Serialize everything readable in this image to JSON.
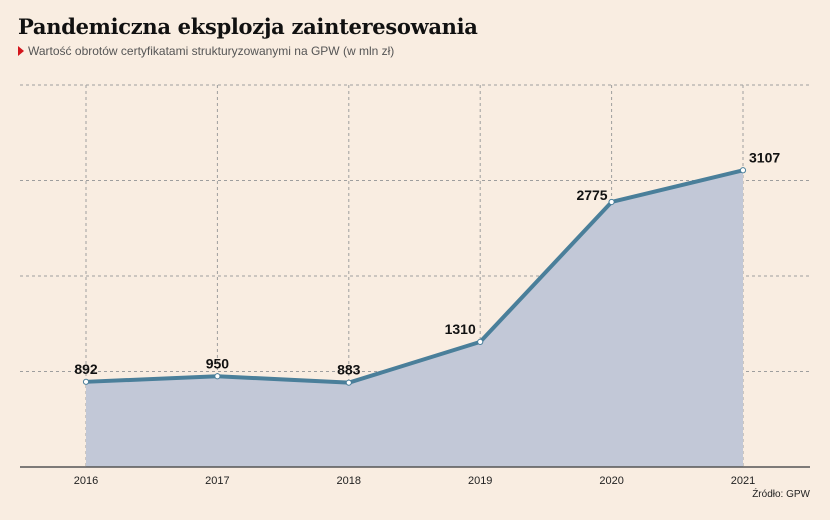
{
  "chart_data": {
    "type": "area",
    "title": "Pandemiczna eksplozja zainteresowania",
    "subtitle": "Wartość obrotów certyfikatami strukturyzowanymi na GPW (w mln zł)",
    "categories": [
      "2016",
      "2017",
      "2018",
      "2019",
      "2020",
      "2021"
    ],
    "values": [
      892,
      950,
      883,
      1310,
      2775,
      3107
    ],
    "data_labels": [
      "892",
      "950",
      "883",
      "1310",
      "2775",
      "3107"
    ],
    "xlabel": "",
    "ylabel": "",
    "ylim": [
      0,
      4000
    ],
    "grid": true,
    "legend": "none",
    "source": "Źródło: GPW",
    "colors": {
      "line": "#4a7f9a",
      "area": "#c2c8d7",
      "grid": "#9e9e9e",
      "axis": "#555555",
      "background": "#f9ede1",
      "accent": "#d4151c"
    }
  }
}
